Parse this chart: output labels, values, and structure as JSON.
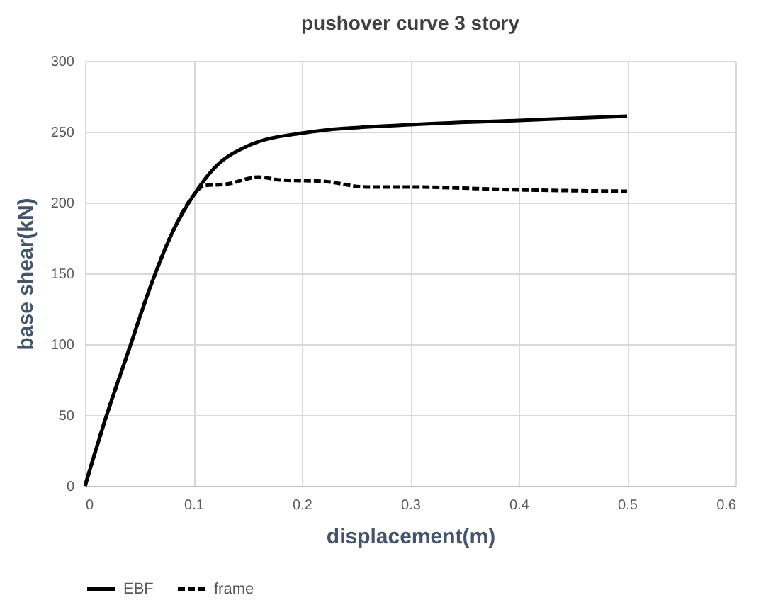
{
  "chart_data": {
    "type": "line",
    "title": "pushover curve 3 story",
    "xlabel": "displacement(m)",
    "ylabel": "base shear(kN)",
    "xlim": [
      0,
      0.6
    ],
    "xticks": [
      0,
      0.1,
      0.2,
      0.3,
      0.4,
      0.5,
      0.6
    ],
    "ylim": [
      0,
      300
    ],
    "yticks": [
      0,
      50,
      100,
      150,
      200,
      250,
      300
    ],
    "grid": true,
    "legend": "bottom",
    "marker": "none",
    "series": [
      {
        "name": "EBF",
        "color": "#000000",
        "line_style": "solid",
        "x": [
          0,
          0.02,
          0.04,
          0.06,
          0.08,
          0.1,
          0.12,
          0.15,
          0.2,
          0.3,
          0.4,
          0.5
        ],
        "values": [
          0,
          50,
          95,
          140,
          178,
          205,
          225,
          240,
          249,
          255,
          258,
          261
        ]
      },
      {
        "name": "frame",
        "color": "#000000",
        "line_style": "dashed",
        "x": [
          0,
          0.02,
          0.04,
          0.06,
          0.08,
          0.1,
          0.11,
          0.13,
          0.16,
          0.18,
          0.22,
          0.26,
          0.3,
          0.4,
          0.5
        ],
        "values": [
          0,
          50,
          95,
          140,
          178,
          205,
          212,
          213,
          218,
          216,
          215,
          211,
          211,
          209,
          208
        ]
      }
    ]
  }
}
